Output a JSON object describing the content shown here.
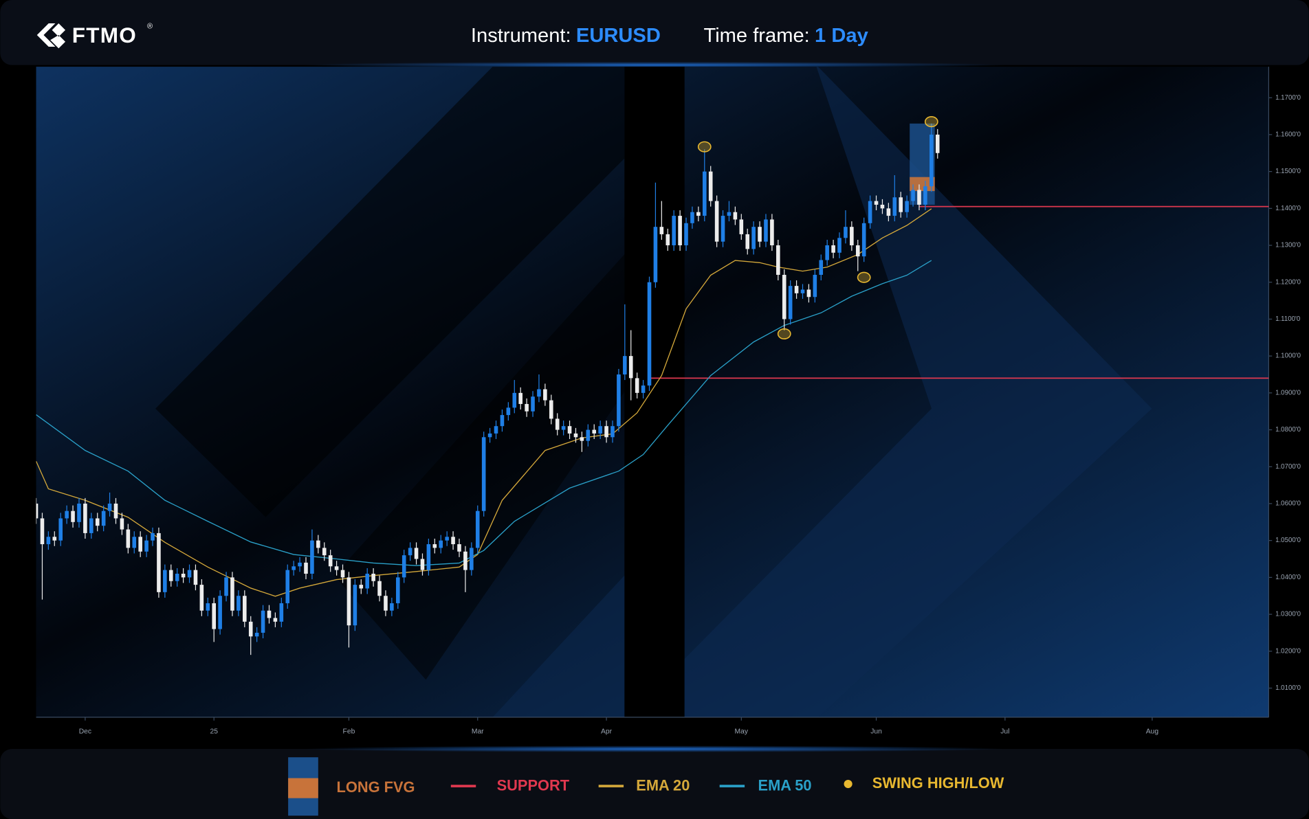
{
  "header": {
    "logo": "FTMO",
    "registered": "®",
    "instrument_label": "Instrument:",
    "instrument": "EURUSD",
    "timeframe_label": "Time frame:",
    "timeframe": "1 Day"
  },
  "chart_data": {
    "type": "candlestick",
    "categories": [
      null,
      null,
      null,
      null,
      null,
      null,
      null,
      null,
      null,
      null,
      null,
      null,
      null,
      null,
      null,
      null,
      null,
      null,
      null,
      null,
      null,
      null,
      null,
      null,
      null,
      null,
      null,
      null,
      null,
      null,
      null,
      null,
      null,
      null,
      null,
      null,
      null,
      null,
      null,
      null,
      null,
      null,
      null,
      null,
      null,
      null,
      null,
      null,
      null,
      null,
      null,
      null,
      null,
      null,
      null,
      null,
      null,
      null,
      null,
      null,
      null,
      null,
      null,
      null,
      null,
      null,
      null,
      null,
      null,
      null,
      null,
      null,
      null,
      null,
      null,
      null,
      null,
      null,
      null,
      null,
      null,
      null,
      null,
      null,
      null,
      null,
      null,
      null,
      null,
      null,
      null,
      null,
      null,
      null,
      null,
      null,
      null,
      null,
      null,
      null,
      null,
      null,
      null,
      null,
      null,
      null,
      null,
      null,
      null,
      null,
      null,
      null,
      null,
      null,
      null,
      null,
      null,
      null,
      null,
      null,
      null,
      null,
      null,
      null,
      null,
      null,
      null,
      null,
      null,
      null,
      null,
      null,
      null,
      null,
      null,
      null,
      null,
      null,
      null,
      null,
      null,
      null,
      null,
      null,
      null,
      null,
      null,
      null
    ],
    "open": [
      1.06,
      1.056,
      1.049,
      1.051,
      1.05,
      1.056,
      1.058,
      1.055,
      1.06,
      1.052,
      1.056,
      1.054,
      1.058,
      1.06,
      1.056,
      1.053,
      1.048,
      1.051,
      1.047,
      1.05,
      1.052,
      1.036,
      1.042,
      1.039,
      1.041,
      1.04,
      1.042,
      1.038,
      1.031,
      1.033,
      1.026,
      1.035,
      1.04,
      1.031,
      1.035,
      1.028,
      1.024,
      1.025,
      1.031,
      1.029,
      1.028,
      1.033,
      1.042,
      1.043,
      1.044,
      1.041,
      1.05,
      1.048,
      1.046,
      1.043,
      1.042,
      1.04,
      1.027,
      1.038,
      1.037,
      1.041,
      1.039,
      1.035,
      1.031,
      1.033,
      1.04,
      1.046,
      1.048,
      1.045,
      1.042,
      1.049,
      1.048,
      1.05,
      1.051,
      1.049,
      1.047,
      1.042,
      1.048,
      1.058,
      1.078,
      1.079,
      1.081,
      1.084,
      1.086,
      1.09,
      1.087,
      1.085,
      1.089,
      1.091,
      1.088,
      1.083,
      1.08,
      1.081,
      1.079,
      1.078,
      1.077,
      1.08,
      1.079,
      1.081,
      1.078,
      1.081,
      1.095,
      1.1,
      1.094,
      1.09,
      1.092,
      1.12,
      1.135,
      1.133,
      1.13,
      1.138,
      1.13,
      1.136,
      1.139,
      1.138,
      1.15,
      1.142,
      1.131,
      1.138,
      1.139,
      1.137,
      1.133,
      1.129,
      1.135,
      1.131,
      1.137,
      1.13,
      1.122,
      1.11,
      1.119,
      1.117,
      1.118,
      1.116,
      1.122,
      1.126,
      1.13,
      1.128,
      1.132,
      1.135,
      1.13,
      1.127,
      1.136,
      1.142,
      1.141,
      1.14,
      1.138,
      1.143,
      1.139,
      1.142,
      1.145,
      1.141,
      1.146,
      1.16
    ],
    "high": [
      1.0615,
      1.0575,
      1.0525,
      1.0525,
      1.0575,
      1.0595,
      1.0595,
      1.0615,
      1.0615,
      1.0575,
      1.0575,
      1.0595,
      1.063,
      1.0615,
      1.0575,
      1.0545,
      1.0525,
      1.0525,
      1.0515,
      1.0535,
      1.0535,
      1.0435,
      1.0435,
      1.0425,
      1.0425,
      1.0435,
      1.0435,
      1.0395,
      1.0345,
      1.0345,
      1.0365,
      1.0415,
      1.0415,
      1.0365,
      1.0365,
      1.0295,
      1.0265,
      1.0325,
      1.0325,
      1.0305,
      1.0345,
      1.0435,
      1.0445,
      1.0455,
      1.0455,
      1.053,
      1.0515,
      1.0495,
      1.0475,
      1.0445,
      1.0435,
      1.0415,
      1.0395,
      1.0395,
      1.0425,
      1.0425,
      1.0405,
      1.0365,
      1.0345,
      1.0415,
      1.0475,
      1.0495,
      1.0495,
      1.0465,
      1.0505,
      1.0505,
      1.0515,
      1.0525,
      1.0525,
      1.0505,
      1.0485,
      1.0495,
      1.0595,
      1.0795,
      1.0805,
      1.0825,
      1.0855,
      1.0875,
      1.0935,
      1.0915,
      1.0885,
      1.0905,
      1.095,
      1.0925,
      1.0895,
      1.0845,
      1.0825,
      1.0825,
      1.0805,
      1.0795,
      1.0815,
      1.0815,
      1.0825,
      1.0825,
      1.0825,
      1.0965,
      1.114,
      1.107,
      1.0955,
      1.0935,
      1.1215,
      1.147,
      1.142,
      1.1345,
      1.1395,
      1.1395,
      1.1375,
      1.1405,
      1.1405,
      1.156,
      1.1515,
      1.1435,
      1.1395,
      1.142,
      1.1405,
      1.1385,
      1.1345,
      1.1365,
      1.1365,
      1.1385,
      1.1385,
      1.1315,
      1.1235,
      1.1205,
      1.1205,
      1.1195,
      1.1195,
      1.1235,
      1.1275,
      1.1315,
      1.1315,
      1.1335,
      1.1395,
      1.1365,
      1.1315,
      1.1375,
      1.1435,
      1.1435,
      1.1425,
      1.1415,
      1.149,
      1.1445,
      1.1435,
      1.1465,
      1.1465,
      1.1475,
      1.163,
      1.1615
    ],
    "low": [
      1.0545,
      1.034,
      1.0475,
      1.0485,
      1.0485,
      1.0545,
      1.0535,
      1.0535,
      1.0505,
      1.0505,
      1.0525,
      1.0525,
      1.0565,
      1.0545,
      1.0515,
      1.0465,
      1.0465,
      1.0455,
      1.0455,
      1.0485,
      1.0345,
      1.0345,
      1.0375,
      1.0375,
      1.0385,
      1.0385,
      1.0365,
      1.0295,
      1.0295,
      1.0225,
      1.0245,
      1.0335,
      1.0295,
      1.0295,
      1.0265,
      1.019,
      1.0225,
      1.0235,
      1.0275,
      1.0265,
      1.0265,
      1.0315,
      1.0405,
      1.0415,
      1.0395,
      1.0395,
      1.0465,
      1.0445,
      1.0415,
      1.0405,
      1.0385,
      1.021,
      1.0255,
      1.0355,
      1.0355,
      1.0375,
      1.0335,
      1.0295,
      1.0295,
      1.0315,
      1.0385,
      1.0445,
      1.0435,
      1.0405,
      1.0405,
      1.0465,
      1.0465,
      1.0485,
      1.0475,
      1.0455,
      1.036,
      1.0405,
      1.0465,
      1.0565,
      1.0765,
      1.0775,
      1.0795,
      1.0825,
      1.0845,
      1.0855,
      1.0835,
      1.0835,
      1.0875,
      1.0865,
      1.0815,
      1.0785,
      1.0785,
      1.0775,
      1.0765,
      1.074,
      1.0755,
      1.0775,
      1.0775,
      1.0765,
      1.0765,
      1.0795,
      1.0935,
      1.088,
      1.0885,
      1.0885,
      1.0905,
      1.1185,
      1.1315,
      1.1285,
      1.1285,
      1.1285,
      1.1285,
      1.1345,
      1.1365,
      1.1365,
      1.1405,
      1.1295,
      1.1295,
      1.1365,
      1.1355,
      1.1315,
      1.1275,
      1.1275,
      1.1295,
      1.1295,
      1.1285,
      1.1205,
      1.107,
      1.1085,
      1.1155,
      1.1155,
      1.1145,
      1.1145,
      1.1205,
      1.1245,
      1.1265,
      1.1265,
      1.1305,
      1.1285,
      1.123,
      1.1255,
      1.1345,
      1.1395,
      1.1385,
      1.1365,
      1.1365,
      1.1375,
      1.1375,
      1.1405,
      1.1395,
      1.1395,
      1.1445,
      1.1535
    ],
    "close": [
      1.056,
      1.049,
      1.051,
      1.05,
      1.056,
      1.058,
      1.055,
      1.06,
      1.052,
      1.056,
      1.054,
      1.058,
      1.06,
      1.056,
      1.053,
      1.048,
      1.051,
      1.047,
      1.05,
      1.052,
      1.036,
      1.042,
      1.039,
      1.041,
      1.04,
      1.042,
      1.038,
      1.031,
      1.033,
      1.026,
      1.035,
      1.04,
      1.031,
      1.035,
      1.028,
      1.024,
      1.025,
      1.031,
      1.029,
      1.028,
      1.033,
      1.042,
      1.043,
      1.044,
      1.041,
      1.05,
      1.048,
      1.046,
      1.043,
      1.042,
      1.04,
      1.027,
      1.038,
      1.037,
      1.041,
      1.039,
      1.035,
      1.031,
      1.033,
      1.04,
      1.046,
      1.048,
      1.045,
      1.042,
      1.049,
      1.048,
      1.05,
      1.051,
      1.049,
      1.047,
      1.042,
      1.048,
      1.058,
      1.078,
      1.079,
      1.081,
      1.084,
      1.086,
      1.09,
      1.087,
      1.085,
      1.089,
      1.091,
      1.088,
      1.083,
      1.08,
      1.081,
      1.079,
      1.078,
      1.077,
      1.08,
      1.079,
      1.081,
      1.078,
      1.081,
      1.095,
      1.1,
      1.094,
      1.09,
      1.092,
      1.12,
      1.135,
      1.133,
      1.13,
      1.138,
      1.13,
      1.136,
      1.139,
      1.138,
      1.15,
      1.142,
      1.131,
      1.138,
      1.139,
      1.137,
      1.133,
      1.129,
      1.135,
      1.131,
      1.137,
      1.13,
      1.122,
      1.11,
      1.119,
      1.117,
      1.118,
      1.116,
      1.122,
      1.126,
      1.13,
      1.128,
      1.132,
      1.135,
      1.13,
      1.127,
      1.136,
      1.142,
      1.141,
      1.14,
      1.138,
      1.143,
      1.139,
      1.142,
      1.145,
      1.141,
      1.146,
      1.16,
      1.155
    ],
    "up_color": "#1f7fe6",
    "down_color": "#ececec",
    "xlim": [
      0,
      201
    ],
    "xticks": [
      {
        "value": 8,
        "label": "Dec"
      },
      {
        "value": 29,
        "label": "25"
      },
      {
        "value": 51,
        "label": "Feb"
      },
      {
        "value": 72,
        "label": "Mar"
      },
      {
        "value": 93,
        "label": "Apr"
      },
      {
        "value": 115,
        "label": "May"
      },
      {
        "value": 137,
        "label": "Jun"
      },
      {
        "value": 158,
        "label": "Jul"
      },
      {
        "value": 182,
        "label": "Aug"
      }
    ],
    "ylim": [
      1.0021,
      1.1784
    ],
    "yticks": [
      {
        "value": 1.01,
        "label": "1.0100'0"
      },
      {
        "value": 1.02,
        "label": "1.0200'0"
      },
      {
        "value": 1.03,
        "label": "1.0300'0"
      },
      {
        "value": 1.04,
        "label": "1.0400'0"
      },
      {
        "value": 1.05,
        "label": "1.0500'0"
      },
      {
        "value": 1.06,
        "label": "1.0600'0"
      },
      {
        "value": 1.07,
        "label": "1.0700'0"
      },
      {
        "value": 1.08,
        "label": "1.0800'0"
      },
      {
        "value": 1.09,
        "label": "1.0900'0"
      },
      {
        "value": 1.1,
        "label": "1.1000'0"
      },
      {
        "value": 1.11,
        "label": "1.1100'0"
      },
      {
        "value": 1.12,
        "label": "1.1200'0"
      },
      {
        "value": 1.13,
        "label": "1.1300'0"
      },
      {
        "value": 1.14,
        "label": "1.1400'0"
      },
      {
        "value": 1.15,
        "label": "1.1500'0"
      },
      {
        "value": 1.16,
        "label": "1.1600'0"
      },
      {
        "value": 1.17,
        "label": "1.1700'0"
      }
    ],
    "series": [
      {
        "name": "EMA 20",
        "color": "#d4a83a",
        "x": [
          0,
          2,
          8,
          15,
          21,
          28,
          35,
          39,
          43,
          49,
          55,
          62,
          69,
          72,
          76,
          83,
          89,
          94,
          98,
          102,
          106,
          110,
          114,
          118,
          121,
          125,
          129,
          134,
          138,
          142,
          146
        ],
        "values": [
          1.0715,
          1.064,
          1.0609,
          1.0563,
          1.0495,
          1.0428,
          1.0371,
          1.0349,
          1.0371,
          1.0394,
          1.0405,
          1.0416,
          1.0428,
          1.0462,
          1.0609,
          1.0744,
          1.0778,
          1.0789,
          1.0846,
          1.0947,
          1.1128,
          1.1219,
          1.1259,
          1.1253,
          1.1241,
          1.123,
          1.1241,
          1.1275,
          1.132,
          1.1354,
          1.1399
        ]
      },
      {
        "name": "EMA 50",
        "color": "#2aa0c8",
        "x": [
          0,
          8,
          15,
          21,
          28,
          35,
          42,
          49,
          55,
          62,
          69,
          73,
          78,
          87,
          95,
          99,
          103,
          110,
          117,
          122,
          128,
          133,
          138,
          142,
          146
        ],
        "values": [
          1.0841,
          1.0744,
          1.0688,
          1.0609,
          1.0552,
          1.0496,
          1.0462,
          1.045,
          1.0439,
          1.0432,
          1.0439,
          1.0473,
          1.0552,
          1.0642,
          1.0688,
          1.0733,
          1.0812,
          1.0947,
          1.1038,
          1.1083,
          1.1117,
          1.1162,
          1.1196,
          1.1219,
          1.1259
        ]
      }
    ],
    "support": {
      "name": "SUPPORT",
      "color": "#e0384f",
      "lines": [
        {
          "value": 1.094,
          "from": 100
        },
        {
          "value": 1.1405,
          "from": 144
        }
      ]
    },
    "fvg": {
      "name": "LONG FVG",
      "color": "#1b4f8a",
      "zone_color": "#c8733a",
      "from": 143,
      "to": 146,
      "top": 1.163,
      "bottom": 1.141,
      "zone_top": 1.1485,
      "zone_bottom": 1.1447
    },
    "swings": {
      "name": "SWING HIGH/LOW",
      "color": "#e8b830",
      "x": [
        109,
        122,
        135,
        146
      ],
      "values": [
        1.1567,
        1.106,
        1.1213,
        1.1635
      ]
    }
  }
}
